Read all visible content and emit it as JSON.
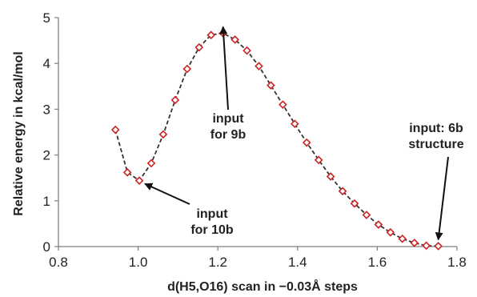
{
  "chart_data": {
    "type": "scatter",
    "title": "",
    "xlabel": "d(H5,O16) scan in −0.03Å steps",
    "ylabel": "Relative energy in kcal/mol",
    "xlim": [
      0.8,
      1.8
    ],
    "ylim": [
      0,
      5
    ],
    "xticks": [
      "0.8",
      "1.0",
      "1.2",
      "1.4",
      "1.6",
      "1.8"
    ],
    "yticks": [
      "0",
      "1",
      "2",
      "3",
      "4",
      "5"
    ],
    "grid": false,
    "legend": "none",
    "series": [
      {
        "line_style": "dashed",
        "line_color": "#333333",
        "marker": "diamond",
        "marker_color": "#cc2222",
        "points": [
          [
            0.943,
            2.55
          ],
          [
            0.973,
            1.62
          ],
          [
            1.003,
            1.44
          ],
          [
            1.033,
            1.82
          ],
          [
            1.063,
            2.45
          ],
          [
            1.093,
            3.2
          ],
          [
            1.123,
            3.88
          ],
          [
            1.153,
            4.35
          ],
          [
            1.183,
            4.62
          ],
          [
            1.213,
            4.66
          ],
          [
            1.243,
            4.52
          ],
          [
            1.273,
            4.28
          ],
          [
            1.303,
            3.94
          ],
          [
            1.333,
            3.52
          ],
          [
            1.363,
            3.1
          ],
          [
            1.393,
            2.68
          ],
          [
            1.423,
            2.27
          ],
          [
            1.453,
            1.89
          ],
          [
            1.483,
            1.53
          ],
          [
            1.513,
            1.21
          ],
          [
            1.543,
            0.94
          ],
          [
            1.573,
            0.69
          ],
          [
            1.603,
            0.48
          ],
          [
            1.633,
            0.31
          ],
          [
            1.663,
            0.17
          ],
          [
            1.693,
            0.08
          ],
          [
            1.723,
            0.02
          ],
          [
            1.753,
            0.01
          ]
        ]
      }
    ],
    "annotations": [
      {
        "lines": [
          "input",
          "for 9b"
        ],
        "target": [
          1.213,
          4.66
        ]
      },
      {
        "lines": [
          "input",
          "for 10b"
        ],
        "target": [
          1.003,
          1.44
        ]
      },
      {
        "lines": [
          "input: 6b",
          "structure"
        ],
        "target": [
          1.753,
          0.01
        ]
      }
    ]
  }
}
